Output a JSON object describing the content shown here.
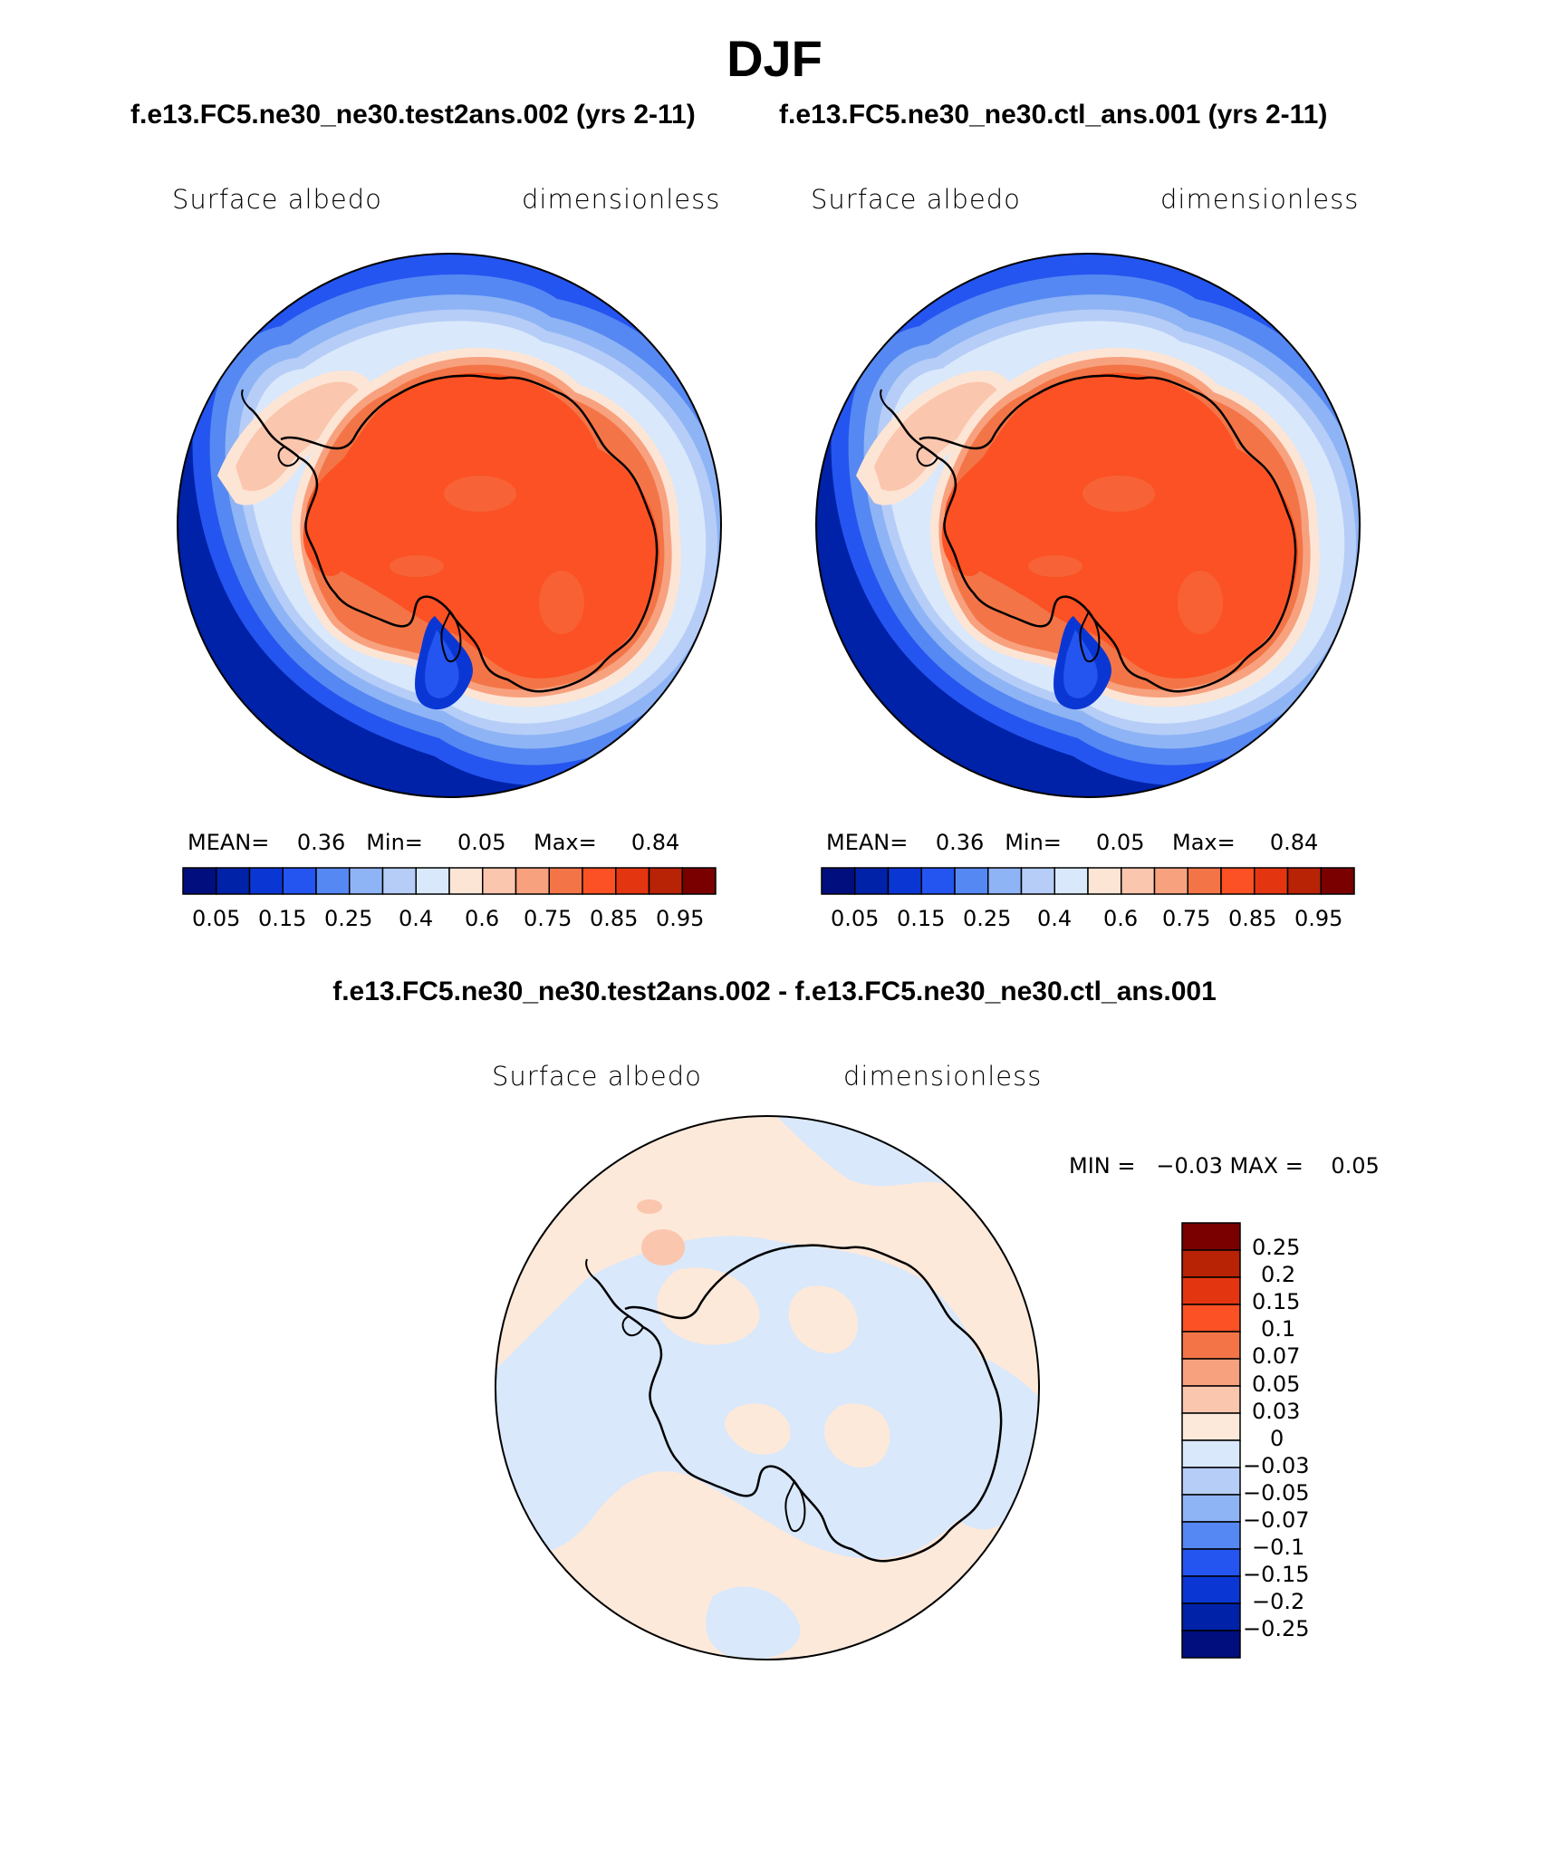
{
  "figure": {
    "season_title": "DJF",
    "case_titles": [
      "f.e13.FC5.ne30_ne30.test2ans.002 (yrs 2-11)",
      "f.e13.FC5.ne30_ne30.ctl_ans.001 (yrs 2-11)"
    ],
    "difference_title": "f.e13.FC5.ne30_ne30.test2ans.002 - f.e13.FC5.ne30_ne30.ctl_ans.001"
  },
  "panels": [
    {
      "variable": "Surface albedo",
      "units": "dimensionless",
      "stats_text": "MEAN=    0.36   Min=     0.05    Max=     0.84",
      "colorbar_ticks": [
        "0.05",
        "0.15",
        "0.25",
        "0.4",
        "0.6",
        "0.75",
        "0.85",
        "0.95"
      ]
    },
    {
      "variable": "Surface albedo",
      "units": "dimensionless",
      "stats_text": "MEAN=    0.36   Min=     0.05    Max=     0.84",
      "colorbar_ticks": [
        "0.05",
        "0.15",
        "0.25",
        "0.4",
        "0.6",
        "0.75",
        "0.85",
        "0.95"
      ]
    }
  ],
  "difference_panel": {
    "variable": "Surface albedo",
    "units": "dimensionless",
    "stats_text": "MIN =   −0.03 MAX =    0.05",
    "colorbar_ticks": [
      "0.25",
      "0.2",
      "0.15",
      "0.1",
      "0.07",
      "0.05",
      "0.03",
      "0",
      "−0.03",
      "−0.05",
      "−0.07",
      "−0.1",
      "−0.15",
      "−0.2",
      "−0.25"
    ]
  },
  "colors": {
    "field_palette": [
      "#000e7e",
      "#0022a8",
      "#0a37d4",
      "#2455f0",
      "#5588f2",
      "#8eb4f5",
      "#b6cdf7",
      "#d9e8fb",
      "#fde5d5",
      "#fbc6ae",
      "#f8a17f",
      "#f37547",
      "#fb5124",
      "#e43511",
      "#b82205",
      "#7a0000"
    ],
    "difference_palette": [
      "#000e7e",
      "#0022a8",
      "#0a37d4",
      "#2455f0",
      "#5588f2",
      "#8eb4f5",
      "#b6cdf7",
      "#d9e8fb",
      "#fde9da",
      "#fbc6ae",
      "#f8a17f",
      "#f37547",
      "#fb5124",
      "#e43511",
      "#b82205",
      "#7a0000"
    ]
  }
}
